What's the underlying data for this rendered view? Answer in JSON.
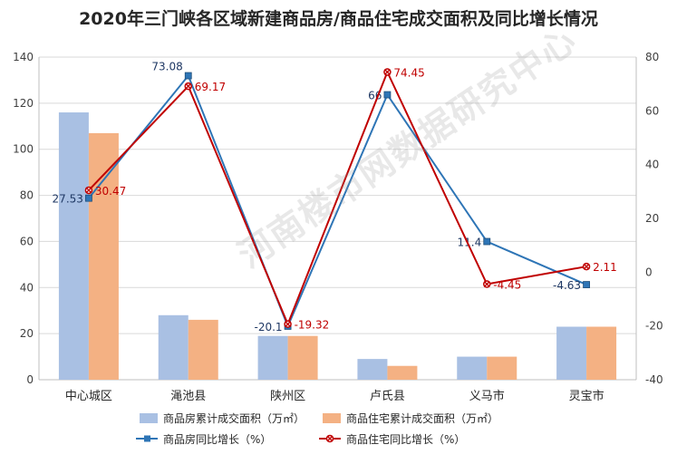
{
  "title": "2020年三门峡各区域新建商品房/商品住宅成交面积及同比增长情况",
  "watermark": "河南楼市网数据研究中心",
  "chart_data": {
    "type": "bar",
    "categories": [
      "中心城区",
      "渑池县",
      "陕州区",
      "卢氏县",
      "义马市",
      "灵宝市"
    ],
    "series": [
      {
        "name": "商品房累计成交面积（万㎡）",
        "kind": "bar",
        "axis": "left",
        "color": "#a9c0e3",
        "values": [
          116,
          28,
          19,
          9,
          10,
          23
        ]
      },
      {
        "name": "商品住宅累计成交面积（万㎡）",
        "kind": "bar",
        "axis": "left",
        "color": "#f4b183",
        "values": [
          107,
          26,
          19,
          6,
          10,
          23
        ]
      },
      {
        "name": "商品房同比增长（%）",
        "kind": "line",
        "axis": "right",
        "color": "#2e75b6",
        "values": [
          27.53,
          73.08,
          -20.1,
          66,
          11.4,
          -4.63
        ],
        "labels": [
          "27.53",
          "73.08",
          "-20.1",
          "66",
          "11.4",
          "-4.63"
        ]
      },
      {
        "name": "商品住宅同比增长（%）",
        "kind": "line",
        "axis": "right",
        "color": "#c00000",
        "values": [
          30.47,
          69.17,
          -19.32,
          74.45,
          -4.45,
          2.11
        ],
        "labels": [
          "30.47",
          "69.17",
          "-19.32",
          "74.45",
          "-4.45",
          "2.11"
        ]
      }
    ],
    "left_axis": {
      "min": 0,
      "max": 140,
      "ticks": [
        "0",
        "20",
        "40",
        "60",
        "80",
        "100",
        "120",
        "140"
      ]
    },
    "right_axis": {
      "min": -40,
      "max": 80,
      "ticks": [
        "-40",
        "-20",
        "0",
        "20",
        "40",
        "60",
        "80"
      ]
    },
    "grid": true,
    "legend": "bottom"
  }
}
